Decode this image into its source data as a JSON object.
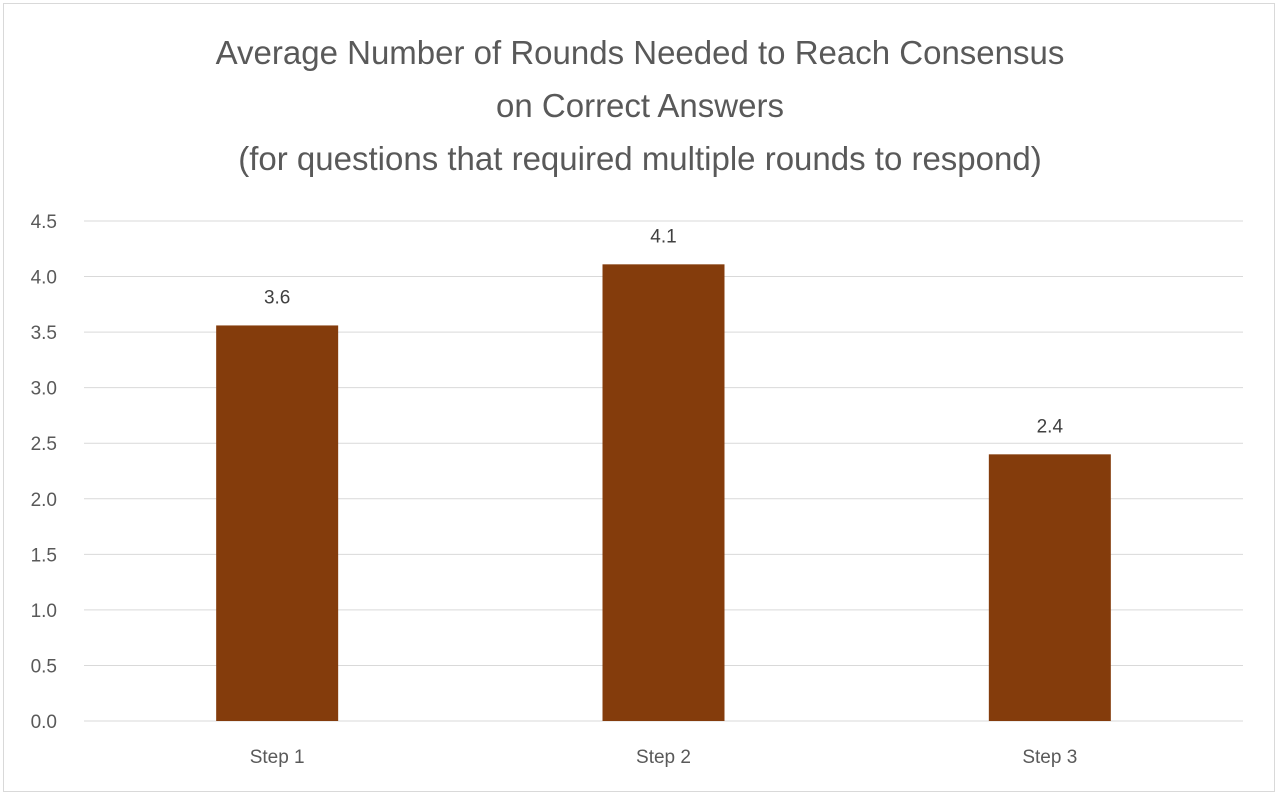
{
  "chart_data": {
    "type": "bar",
    "title_lines": [
      "Average Number of Rounds Needed to Reach Consensus",
      "on Correct Answers",
      "(for questions that required multiple rounds to respond)"
    ],
    "categories": [
      "Step 1",
      "Step 2",
      "Step 3"
    ],
    "values": [
      3.6,
      4.1,
      2.4
    ],
    "data_labels": [
      "3.6",
      "4.1",
      "2.4"
    ],
    "bar_values_estimated": [
      3.56,
      4.11,
      2.4
    ],
    "ylim": [
      0,
      4.5
    ],
    "y_ticks": [
      "0.0",
      "0.5",
      "1.0",
      "1.5",
      "2.0",
      "2.5",
      "3.0",
      "3.5",
      "4.0",
      "4.5"
    ],
    "grid": true,
    "legend": "none",
    "bar_color": "#843c0c",
    "grid_color": "#d9d9d9",
    "text_color": "#595959"
  }
}
